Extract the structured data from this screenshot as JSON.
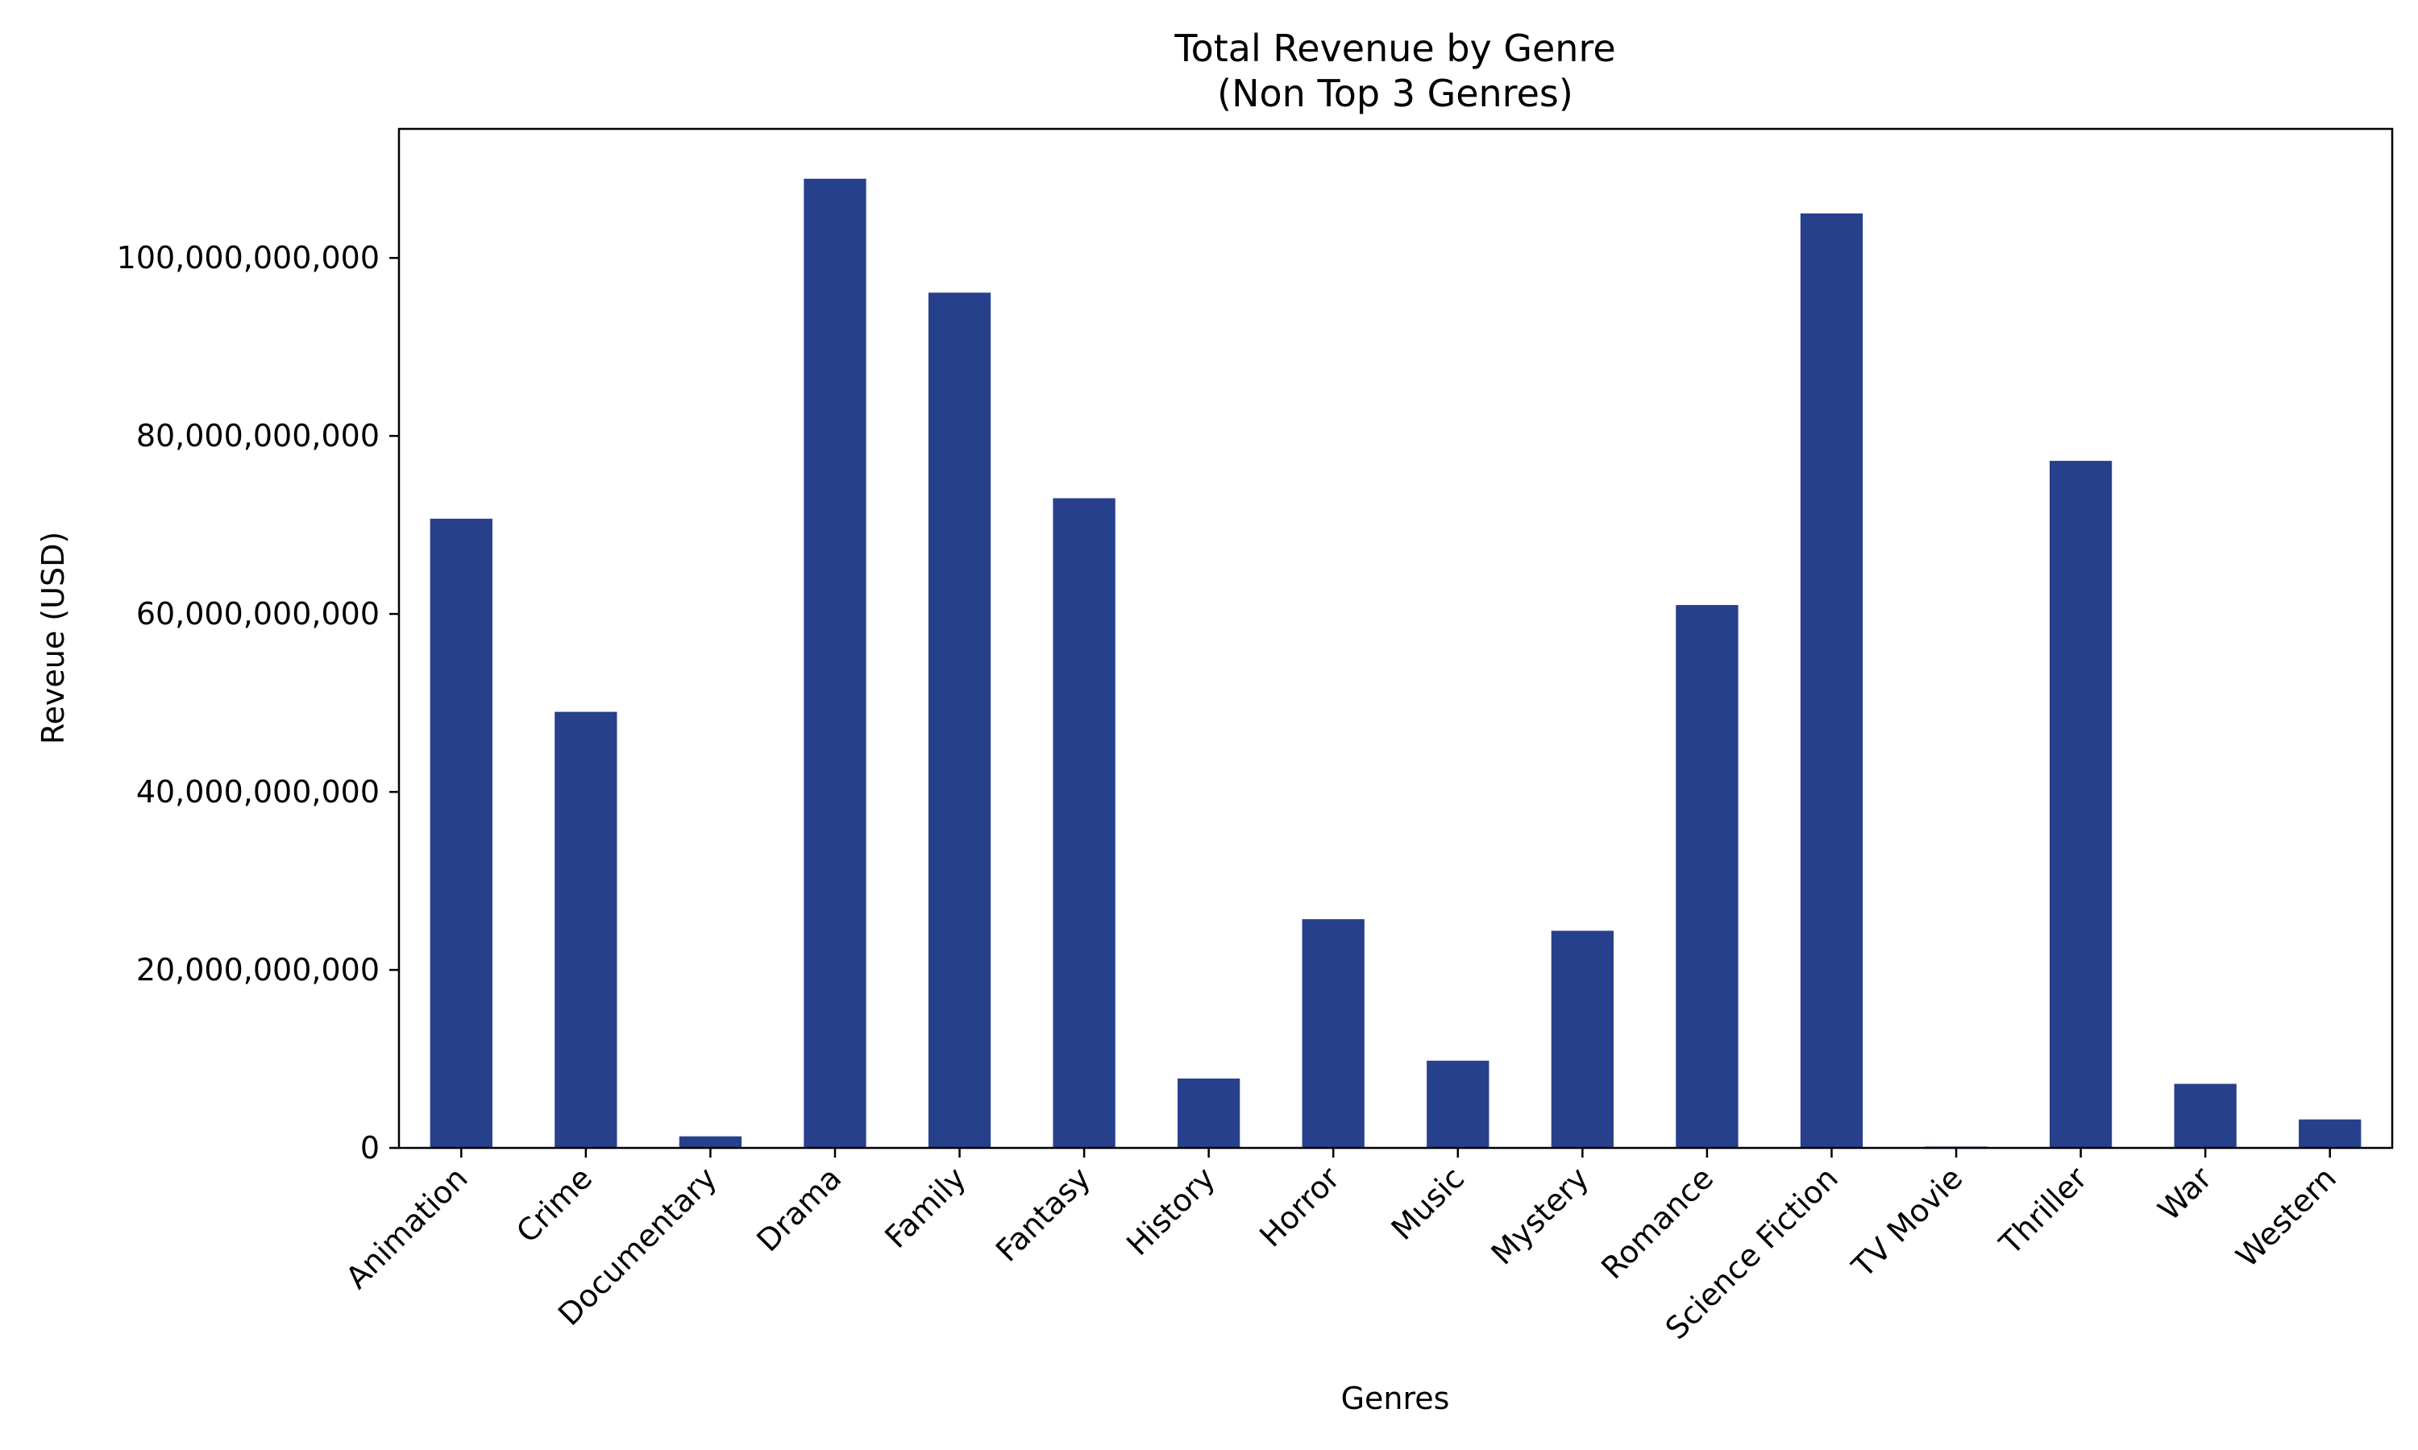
{
  "chart_data": {
    "type": "bar",
    "title": "Total Revenue by Genre",
    "subtitle": "(Non Top 3 Genres)",
    "xlabel": "Genres",
    "ylabel": "Reveue (USD)",
    "categories": [
      "Animation",
      "Crime",
      "Documentary",
      "Drama",
      "Family",
      "Fantasy",
      "History",
      "Horror",
      "Music",
      "Mystery",
      "Romance",
      "Science Fiction",
      "TV Movie",
      "Thriller",
      "War",
      "Western"
    ],
    "values": [
      70700000000,
      49000000000,
      1300000000,
      108900000000,
      96100000000,
      73000000000,
      7800000000,
      25700000000,
      9800000000,
      24400000000,
      61000000000,
      105000000000,
      150000000,
      77200000000,
      7200000000,
      3200000000
    ],
    "ylim": [
      0,
      114500000000
    ],
    "yticks": [
      0,
      20000000000,
      40000000000,
      60000000000,
      80000000000,
      100000000000
    ],
    "ytick_labels": [
      "0",
      "20,000,000,000",
      "40,000,000,000",
      "60,000,000,000",
      "80,000,000,000",
      "100,000,000,000"
    ],
    "bar_color": "#27408b",
    "grid": false,
    "legend": "none"
  }
}
